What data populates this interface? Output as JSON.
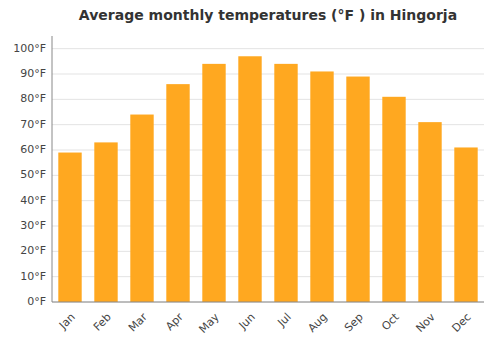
{
  "chart_data": {
    "type": "bar",
    "title": "Average monthly temperatures (°F ) in Hingorja",
    "categories": [
      "Jan",
      "Feb",
      "Mar",
      "Apr",
      "May",
      "Jun",
      "Jul",
      "Aug",
      "Sep",
      "Oct",
      "Nov",
      "Dec"
    ],
    "values": [
      59,
      63,
      74,
      86,
      94,
      97,
      94,
      91,
      89,
      81,
      71,
      61
    ],
    "color": "#FFA820",
    "ylim": [
      0,
      105
    ],
    "yticks": [
      {
        "value": 0,
        "label": "0°F"
      },
      {
        "value": 10,
        "label": "10°F"
      },
      {
        "value": 20,
        "label": "20°F"
      },
      {
        "value": 30,
        "label": "30°F"
      },
      {
        "value": 40,
        "label": "40°F"
      },
      {
        "value": 50,
        "label": "50°F"
      },
      {
        "value": 60,
        "label": "60°F"
      },
      {
        "value": 70,
        "label": "70°F"
      },
      {
        "value": 80,
        "label": "80°F"
      },
      {
        "value": 90,
        "label": "90°F"
      },
      {
        "value": 100,
        "label": "100°F"
      }
    ],
    "grid": true
  }
}
